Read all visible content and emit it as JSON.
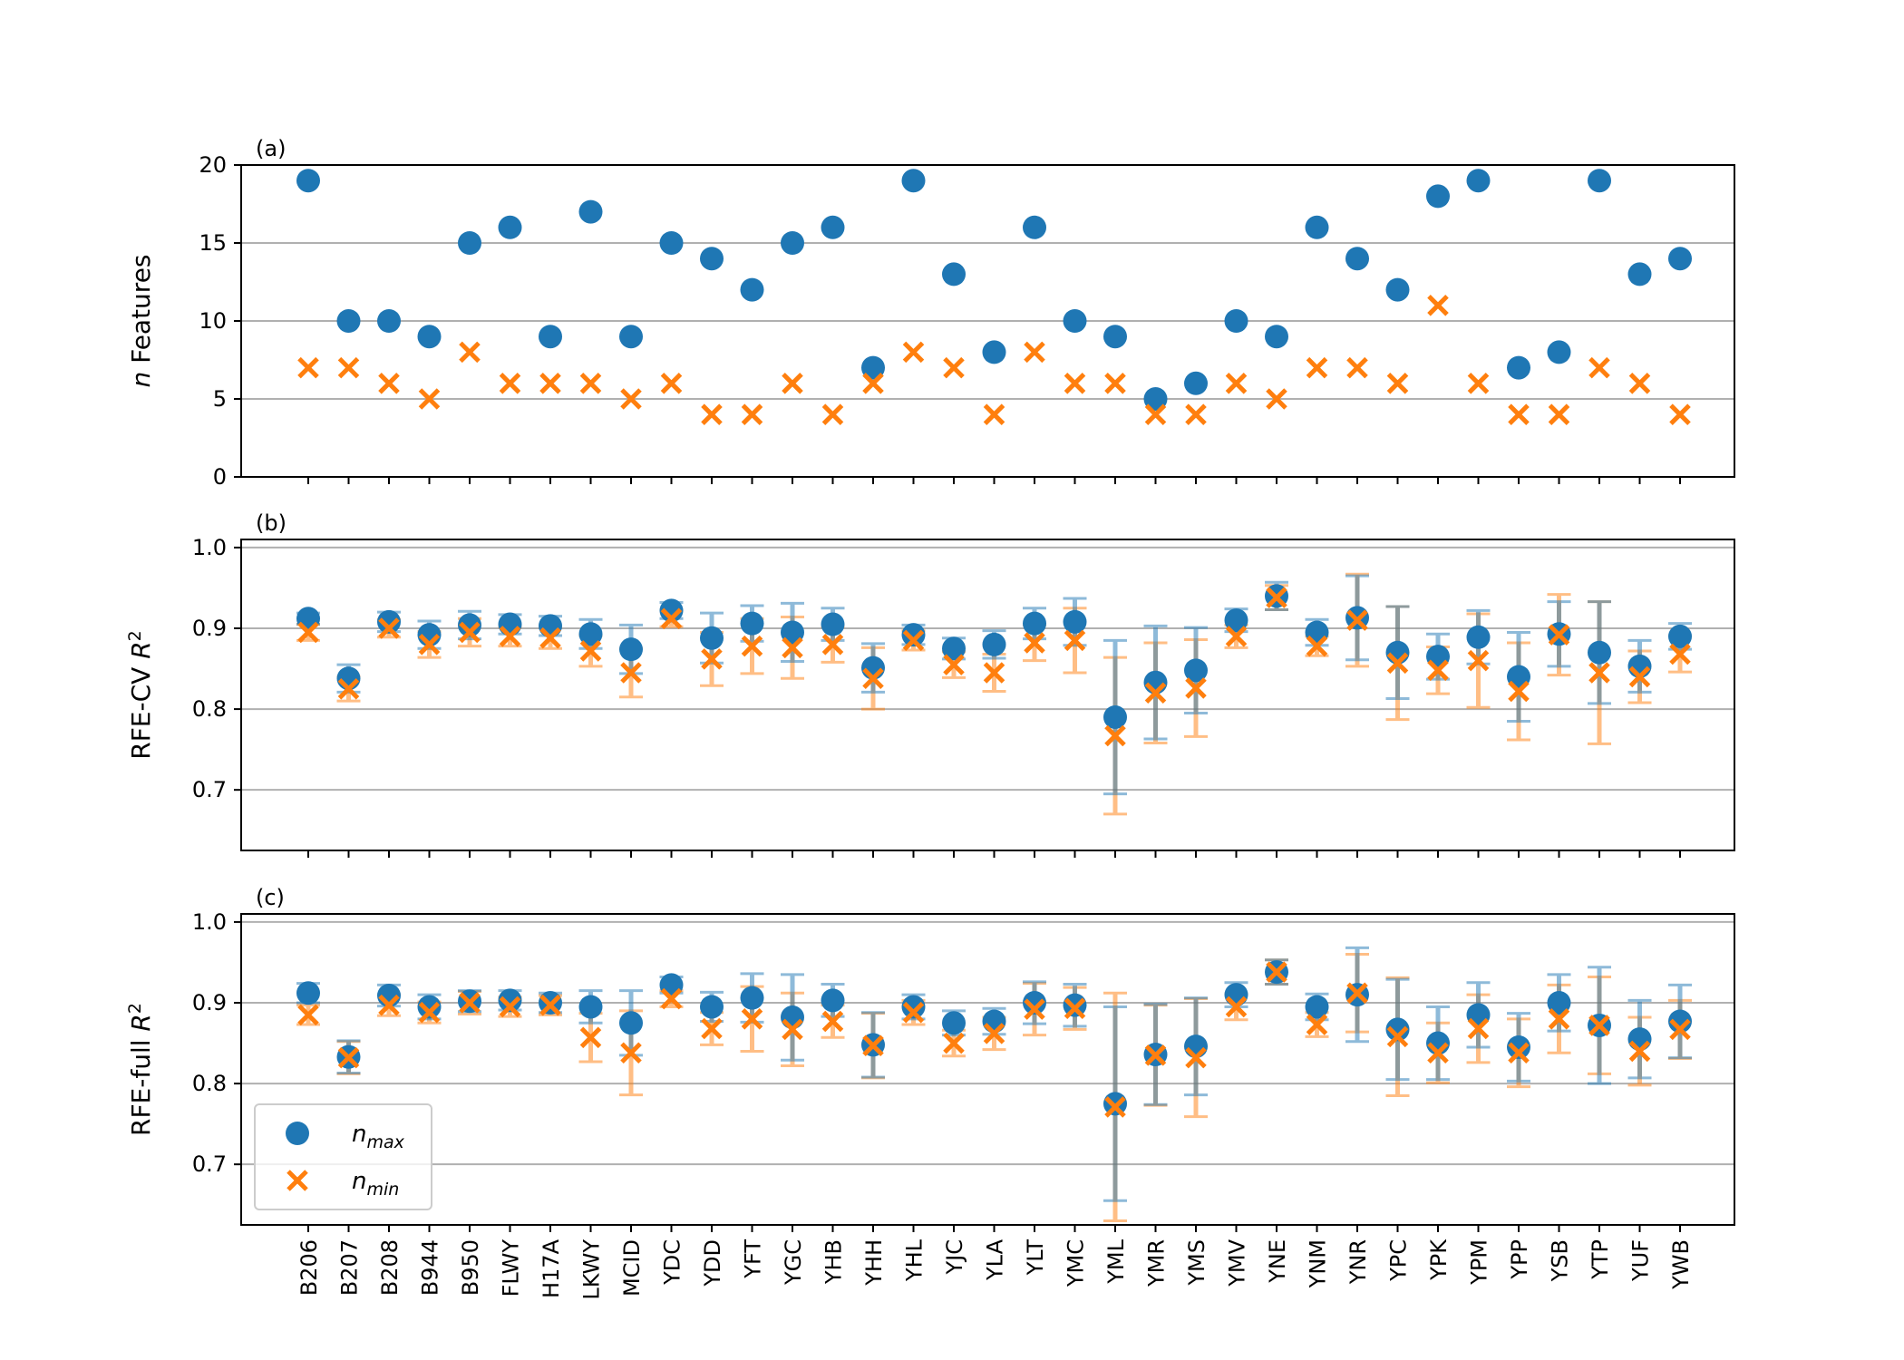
{
  "colors": {
    "nmax": "#1f77b4",
    "nmin": "#ff7f0e",
    "grid": "#b0b0b0"
  },
  "legend": {
    "nmax": {
      "base": "n",
      "sub": "max"
    },
    "nmin": {
      "base": "n",
      "sub": "min"
    }
  },
  "chart_data": [
    {
      "type": "scatter",
      "panel_label": "(a)",
      "ylabel": {
        "italic": "n",
        "rest": " Features"
      },
      "ylim": [
        0,
        20
      ],
      "yticks": [
        0,
        5,
        10,
        15,
        20
      ],
      "grid": true,
      "categories": [
        "B206",
        "B207",
        "B208",
        "B944",
        "B950",
        "FLWY",
        "H17A",
        "LKWY",
        "MCID",
        "YDC",
        "YDD",
        "YFT",
        "YGC",
        "YHB",
        "YHH",
        "YHL",
        "YJC",
        "YLA",
        "YLT",
        "YMC",
        "YML",
        "YMR",
        "YMS",
        "YMV",
        "YNE",
        "YNM",
        "YNR",
        "YPC",
        "YPK",
        "YPM",
        "YPP",
        "YSB",
        "YTP",
        "YUF",
        "YWB"
      ],
      "series": [
        {
          "name": "nmax",
          "values": [
            19,
            10,
            10,
            9,
            15,
            16,
            9,
            17,
            9,
            15,
            14,
            12,
            15,
            16,
            7,
            19,
            13,
            8,
            16,
            10,
            9,
            5,
            6,
            10,
            9,
            16,
            14,
            12,
            18,
            19,
            7,
            8,
            19,
            13,
            14
          ]
        },
        {
          "name": "nmin",
          "values": [
            7,
            7,
            6,
            5,
            8,
            6,
            6,
            6,
            5,
            6,
            4,
            4,
            6,
            4,
            6,
            8,
            7,
            4,
            8,
            6,
            6,
            4,
            4,
            6,
            5,
            7,
            7,
            6,
            11,
            6,
            4,
            4,
            7,
            6,
            4
          ]
        }
      ]
    },
    {
      "type": "scatter",
      "panel_label": "(b)",
      "ylabel": {
        "base": "RFE-CV ",
        "italic": "R",
        "sup": "2"
      },
      "ylim": [
        0.625,
        1.01
      ],
      "yticks": [
        0.7,
        0.8,
        0.9,
        1.0
      ],
      "ytick_labels": [
        "0.7",
        "0.8",
        "0.9",
        "1.0"
      ],
      "grid": true,
      "series": [
        {
          "name": "nmax",
          "values": [
            0.912,
            0.838,
            0.908,
            0.892,
            0.904,
            0.905,
            0.903,
            0.893,
            0.874,
            0.922,
            0.888,
            0.906,
            0.895,
            0.905,
            0.851,
            0.892,
            0.875,
            0.88,
            0.906,
            0.908,
            0.79,
            0.833,
            0.848,
            0.91,
            0.94,
            0.895,
            0.913,
            0.87,
            0.865,
            0.889,
            0.84,
            0.893,
            0.87,
            0.853,
            0.89
          ],
          "err": [
            0.007,
            0.017,
            0.012,
            0.017,
            0.017,
            0.012,
            0.012,
            0.018,
            0.03,
            0.01,
            0.031,
            0.022,
            0.036,
            0.02,
            0.03,
            0.012,
            0.013,
            0.017,
            0.019,
            0.029,
            0.095,
            0.07,
            0.053,
            0.014,
            0.017,
            0.016,
            0.052,
            0.057,
            0.028,
            0.033,
            0.055,
            0.04,
            0.063,
            0.032,
            0.016
          ]
        },
        {
          "name": "nmin",
          "values": [
            0.895,
            0.825,
            0.9,
            0.88,
            0.895,
            0.89,
            0.888,
            0.872,
            0.845,
            0.912,
            0.862,
            0.878,
            0.876,
            0.88,
            0.838,
            0.885,
            0.855,
            0.845,
            0.882,
            0.885,
            0.767,
            0.82,
            0.826,
            0.89,
            0.938,
            0.878,
            0.91,
            0.857,
            0.848,
            0.86,
            0.822,
            0.892,
            0.845,
            0.84,
            0.868
          ]
        },
        {
          "name": "nmin_err",
          "values": [
            0.01,
            0.015,
            0.011,
            0.016,
            0.017,
            0.012,
            0.013,
            0.019,
            0.03,
            0.01,
            0.033,
            0.034,
            0.038,
            0.022,
            0.038,
            0.012,
            0.016,
            0.023,
            0.022,
            0.04,
            0.097,
            0.062,
            0.06,
            0.014,
            0.015,
            0.012,
            0.057,
            0.07,
            0.029,
            0.058,
            0.06,
            0.05,
            0.088,
            0.032,
            0.022
          ]
        }
      ]
    },
    {
      "type": "scatter",
      "panel_label": "(c)",
      "ylabel": {
        "base": "RFE-full ",
        "italic": "R",
        "sup": "2"
      },
      "ylim": [
        0.625,
        1.01
      ],
      "yticks": [
        0.7,
        0.8,
        0.9,
        1.0
      ],
      "ytick_labels": [
        "0.7",
        "0.8",
        "0.9",
        "1.0"
      ],
      "grid": true,
      "series": [
        {
          "name": "nmax",
          "values": [
            0.912,
            0.833,
            0.909,
            0.895,
            0.902,
            0.903,
            0.9,
            0.895,
            0.875,
            0.922,
            0.895,
            0.906,
            0.882,
            0.903,
            0.848,
            0.895,
            0.875,
            0.877,
            0.9,
            0.897,
            0.775,
            0.836,
            0.846,
            0.91,
            0.938,
            0.895,
            0.91,
            0.867,
            0.85,
            0.885,
            0.845,
            0.9,
            0.872,
            0.855,
            0.877
          ]
        },
        {
          "name": "nmax_err",
          "values": [
            0.012,
            0.02,
            0.013,
            0.015,
            0.013,
            0.012,
            0.012,
            0.02,
            0.04,
            0.01,
            0.018,
            0.03,
            0.053,
            0.02,
            0.04,
            0.015,
            0.015,
            0.016,
            0.026,
            0.026,
            0.12,
            0.062,
            0.06,
            0.015,
            0.015,
            0.016,
            0.058,
            0.062,
            0.045,
            0.04,
            0.042,
            0.035,
            0.072,
            0.048,
            0.045
          ]
        },
        {
          "name": "nmin",
          "values": [
            0.885,
            0.832,
            0.897,
            0.888,
            0.9,
            0.895,
            0.897,
            0.857,
            0.838,
            0.905,
            0.868,
            0.88,
            0.867,
            0.877,
            0.847,
            0.888,
            0.85,
            0.862,
            0.892,
            0.893,
            0.771,
            0.835,
            0.832,
            0.895,
            0.938,
            0.873,
            0.912,
            0.858,
            0.838,
            0.868,
            0.838,
            0.88,
            0.872,
            0.84,
            0.867
          ]
        },
        {
          "name": "nmin_err",
          "values": [
            0.012,
            0.02,
            0.013,
            0.013,
            0.014,
            0.012,
            0.012,
            0.03,
            0.052,
            0.01,
            0.02,
            0.04,
            0.045,
            0.02,
            0.04,
            0.015,
            0.016,
            0.02,
            0.032,
            0.026,
            0.141,
            0.062,
            0.073,
            0.016,
            0.015,
            0.015,
            0.048,
            0.073,
            0.037,
            0.042,
            0.042,
            0.042,
            0.06,
            0.042,
            0.036
          ]
        }
      ]
    }
  ]
}
